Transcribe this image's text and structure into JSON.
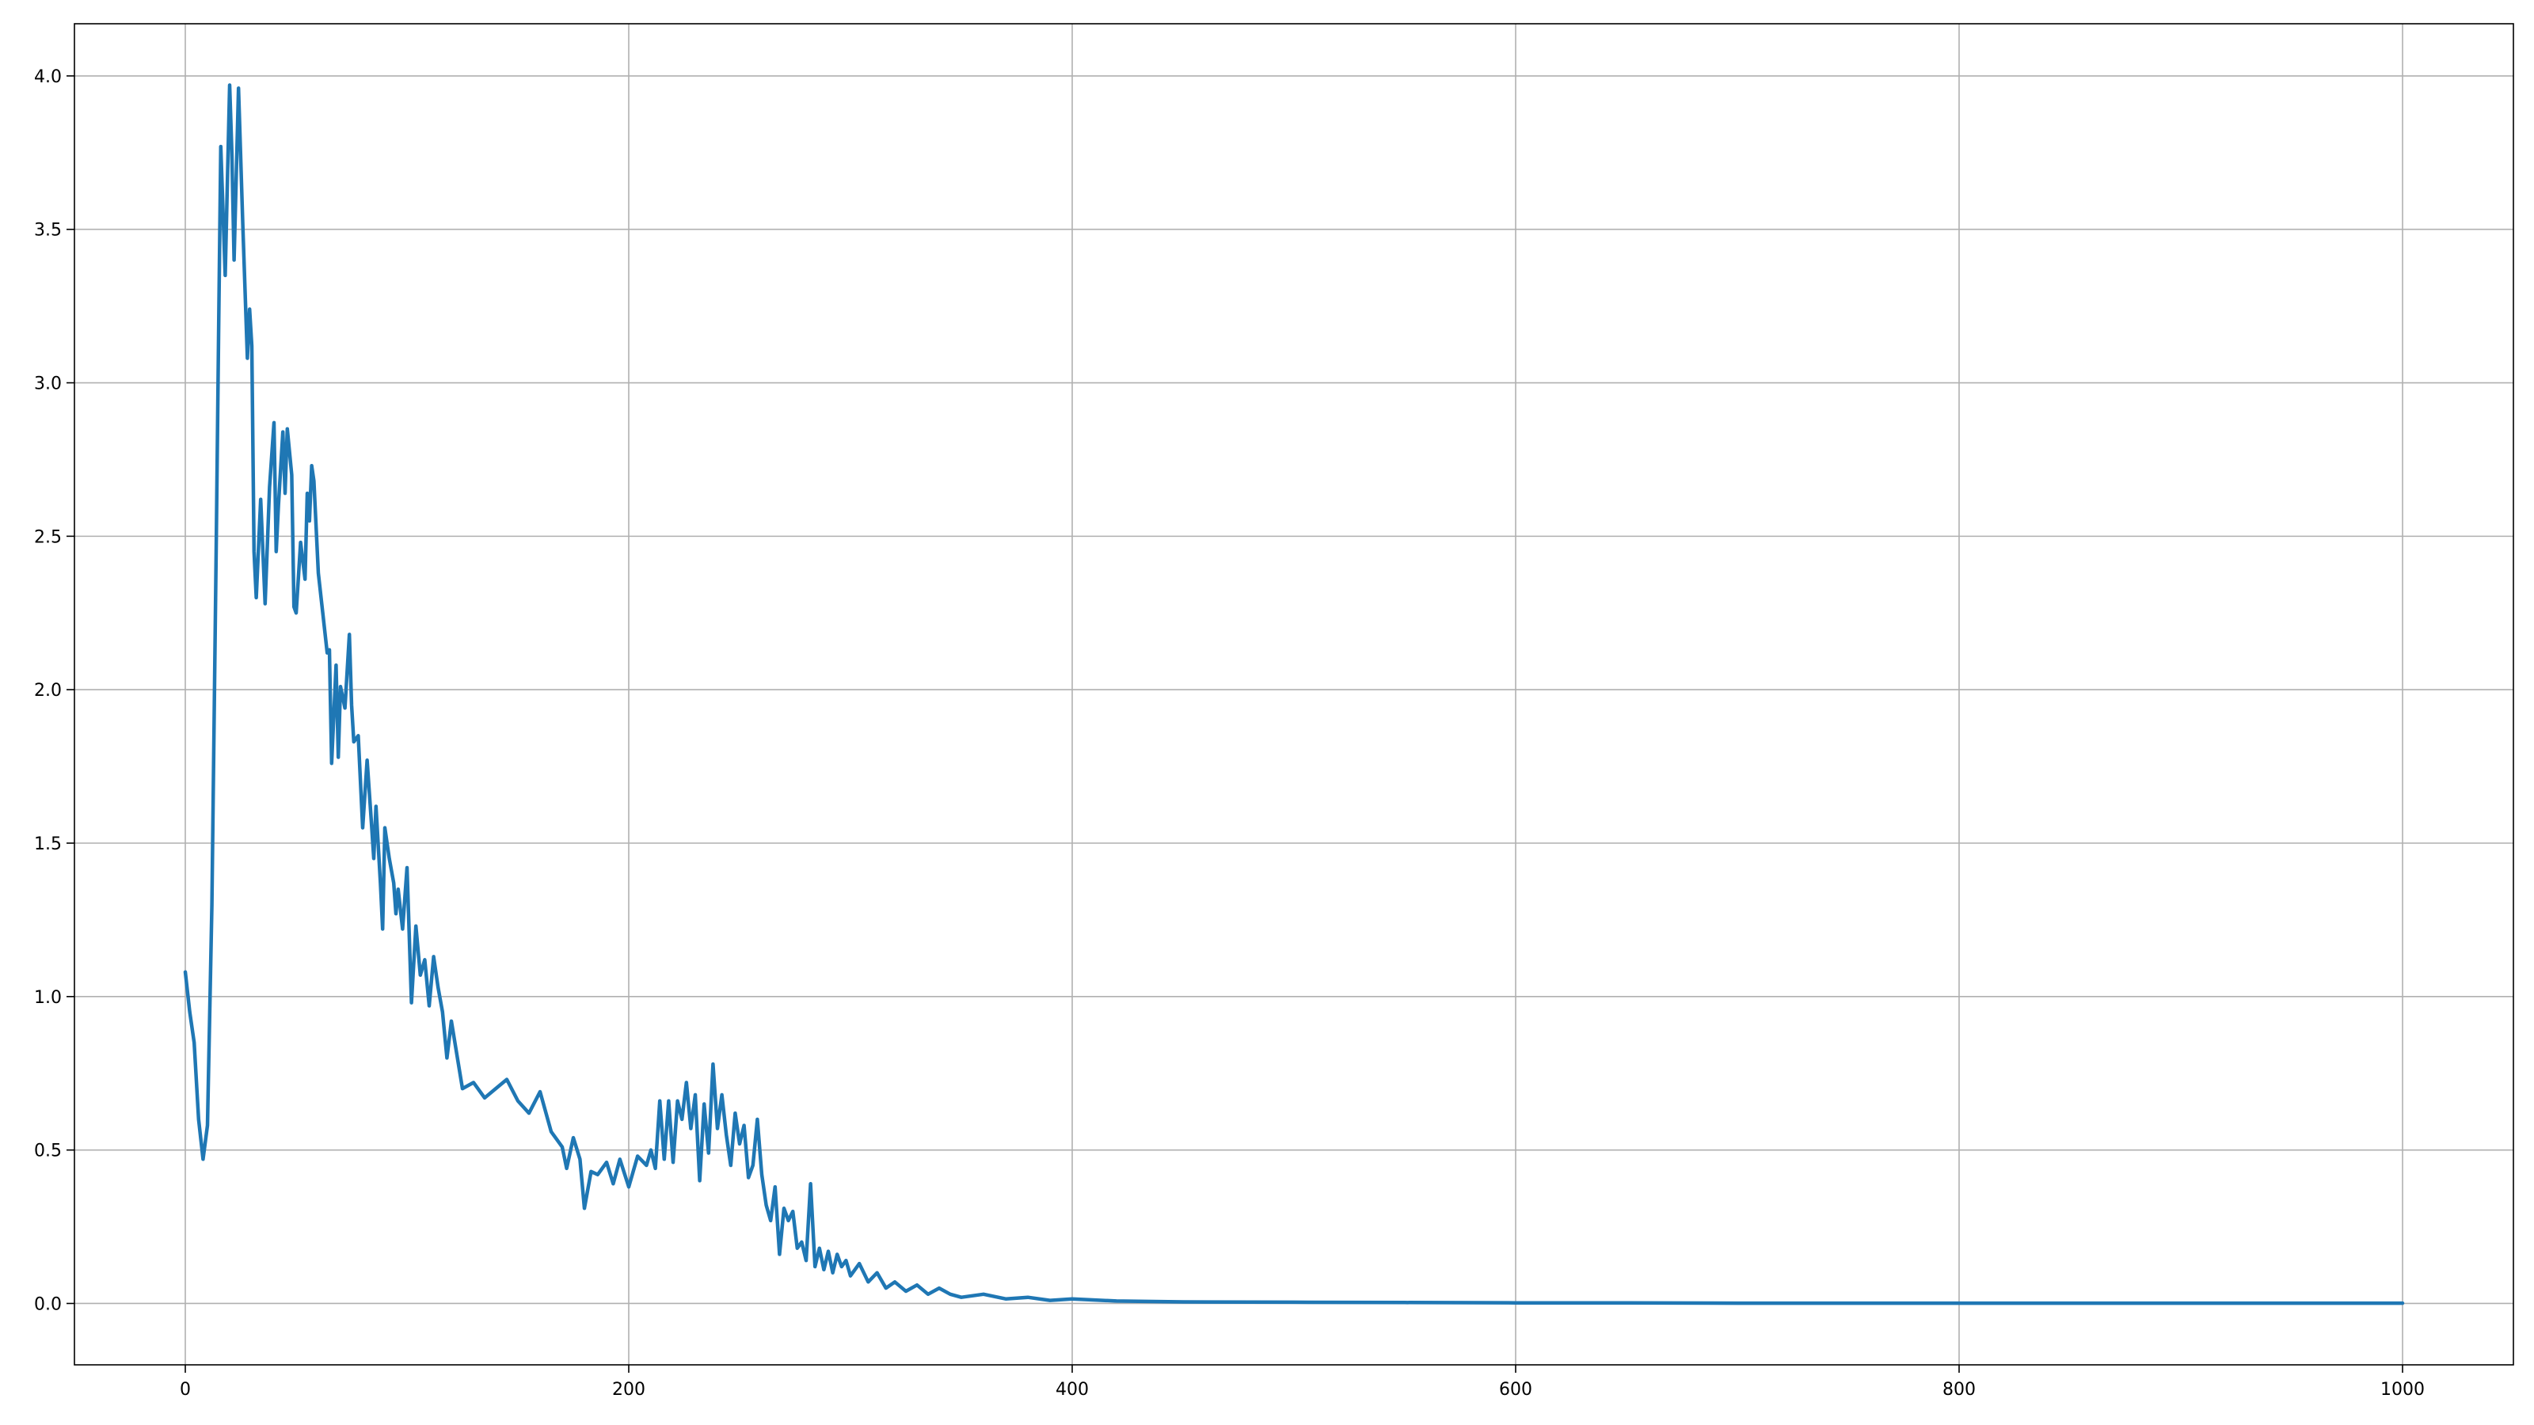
{
  "chart_data": {
    "type": "line",
    "title": "",
    "xlabel": "",
    "ylabel": "",
    "xlim": [
      -50,
      1050
    ],
    "ylim": [
      -0.2,
      4.17
    ],
    "grid": true,
    "x_ticks": [
      0,
      200,
      400,
      600,
      800,
      1000
    ],
    "x_tick_labels": [
      "0",
      "200",
      "400",
      "600",
      "800",
      "1000"
    ],
    "y_ticks": [
      0.0,
      0.5,
      1.0,
      1.5,
      2.0,
      2.5,
      3.0,
      3.5,
      4.0
    ],
    "y_tick_labels": [
      "0.0",
      "0.5",
      "1.0",
      "1.5",
      "2.0",
      "2.5",
      "3.0",
      "3.5",
      "4.0"
    ],
    "colors": {
      "series": "#1f77b4",
      "grid": "#b0b0b0",
      "frame": "#000000"
    },
    "series": [
      {
        "color": "#1f77b4",
        "x": [
          0,
          2,
          4,
          6,
          8,
          10,
          12,
          14,
          15,
          16,
          18,
          20,
          21,
          22,
          24,
          26,
          28,
          29,
          30,
          31,
          32,
          34,
          36,
          38,
          40,
          41,
          42,
          44,
          45,
          46,
          48,
          49,
          50,
          52,
          54,
          55,
          56,
          57,
          58,
          60,
          62,
          64,
          65,
          66,
          68,
          69,
          70,
          72,
          74,
          75,
          76,
          78,
          80,
          82,
          84,
          85,
          86,
          88,
          89,
          90,
          92,
          94,
          95,
          96,
          98,
          100,
          102,
          104,
          106,
          108,
          110,
          112,
          114,
          116,
          118,
          120,
          125,
          130,
          135,
          140,
          145,
          150,
          155,
          160,
          165,
          170,
          172,
          175,
          178,
          180,
          183,
          186,
          190,
          193,
          196,
          200,
          204,
          208,
          210,
          212,
          214,
          216,
          218,
          220,
          222,
          224,
          226,
          228,
          230,
          232,
          234,
          236,
          238,
          240,
          242,
          244,
          246,
          248,
          250,
          252,
          254,
          256,
          258,
          260,
          262,
          264,
          266,
          268,
          270,
          272,
          274,
          276,
          278,
          280,
          282,
          284,
          286,
          288,
          290,
          292,
          294,
          296,
          298,
          300,
          304,
          308,
          312,
          316,
          320,
          325,
          330,
          335,
          340,
          345,
          350,
          360,
          370,
          380,
          390,
          400,
          420,
          450,
          500,
          550,
          600,
          650,
          700,
          750,
          800,
          850,
          900,
          950,
          1000
        ],
        "y": [
          1.08,
          0.95,
          0.85,
          0.6,
          0.47,
          0.58,
          1.3,
          2.5,
          3.15,
          3.77,
          3.35,
          3.97,
          3.75,
          3.4,
          3.96,
          3.5,
          3.08,
          3.24,
          3.12,
          2.45,
          2.3,
          2.62,
          2.28,
          2.66,
          2.87,
          2.45,
          2.6,
          2.84,
          2.64,
          2.85,
          2.7,
          2.27,
          2.25,
          2.48,
          2.36,
          2.64,
          2.55,
          2.73,
          2.68,
          2.38,
          2.25,
          2.12,
          2.13,
          1.76,
          2.08,
          1.78,
          2.01,
          1.94,
          2.18,
          1.95,
          1.83,
          1.85,
          1.55,
          1.77,
          1.56,
          1.45,
          1.62,
          1.37,
          1.22,
          1.55,
          1.45,
          1.37,
          1.27,
          1.35,
          1.22,
          1.42,
          0.98,
          1.23,
          1.07,
          1.12,
          0.97,
          1.13,
          1.03,
          0.95,
          0.8,
          0.92,
          0.7,
          0.72,
          0.67,
          0.7,
          0.73,
          0.66,
          0.62,
          0.69,
          0.56,
          0.51,
          0.44,
          0.54,
          0.47,
          0.31,
          0.43,
          0.42,
          0.46,
          0.39,
          0.47,
          0.38,
          0.48,
          0.45,
          0.5,
          0.44,
          0.66,
          0.47,
          0.66,
          0.46,
          0.66,
          0.6,
          0.72,
          0.57,
          0.68,
          0.4,
          0.65,
          0.49,
          0.78,
          0.57,
          0.68,
          0.55,
          0.45,
          0.62,
          0.52,
          0.58,
          0.41,
          0.45,
          0.6,
          0.42,
          0.32,
          0.27,
          0.38,
          0.16,
          0.31,
          0.27,
          0.3,
          0.18,
          0.2,
          0.14,
          0.39,
          0.12,
          0.18,
          0.11,
          0.17,
          0.1,
          0.16,
          0.12,
          0.14,
          0.09,
          0.13,
          0.07,
          0.1,
          0.05,
          0.07,
          0.04,
          0.06,
          0.03,
          0.05,
          0.03,
          0.02,
          0.03,
          0.015,
          0.02,
          0.01,
          0.015,
          0.008,
          0.005,
          0.004,
          0.003,
          0.002,
          0.002,
          0.001,
          0.001,
          0.001,
          0.001,
          0.001,
          0.001,
          0.001
        ]
      }
    ]
  }
}
